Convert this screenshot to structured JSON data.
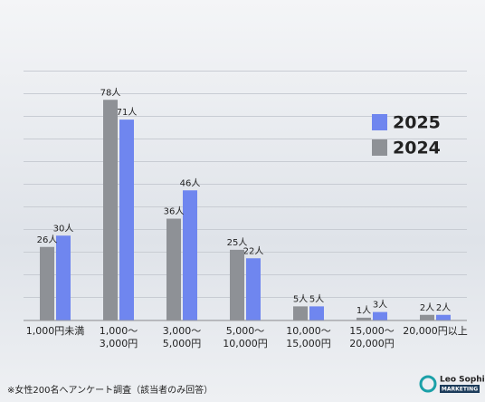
{
  "chart_data": {
    "type": "bar",
    "categories": [
      [
        "1,000円未満"
      ],
      [
        "1,000～",
        "3,000円"
      ],
      [
        "3,000～",
        "5,000円"
      ],
      [
        "5,000～",
        "10,000円"
      ],
      [
        "10,000～",
        "15,000円"
      ],
      [
        "15,000～",
        "20,000円"
      ],
      [
        "20,000円以上"
      ]
    ],
    "series": [
      {
        "name": "2025",
        "color": "#6f86ef",
        "values": [
          30,
          71,
          46,
          22,
          5,
          3,
          2
        ],
        "value_labels": [
          "30人",
          "71人",
          "46人",
          "22人",
          "5人",
          "3人",
          "2人"
        ]
      },
      {
        "name": "2024",
        "color": "#8e9196",
        "values": [
          26,
          78,
          36,
          25,
          5,
          1,
          2
        ],
        "value_labels": [
          "26人",
          "78人",
          "36人",
          "25人",
          "5人",
          "1人",
          "2人"
        ]
      }
    ],
    "ylim": [
      0,
      88
    ],
    "grid": true,
    "legend": "right",
    "note": "※女性200名へアンケート調査（該当者のみ回答）"
  },
  "brand": {
    "name": "Leo Sophia",
    "tag": "MARKETING"
  }
}
